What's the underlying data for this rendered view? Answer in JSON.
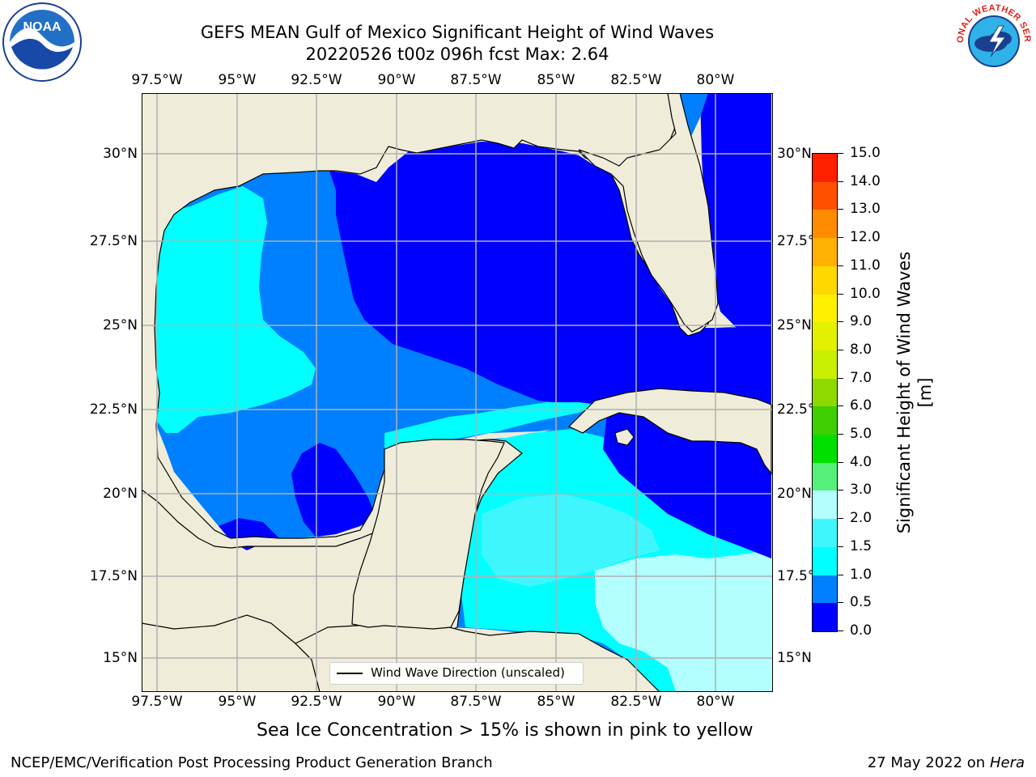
{
  "title": {
    "line1": "GEFS MEAN Gulf of Mexico Significant Height of Wind Waves",
    "line2": "20220526 t00z 096h fcst   Max: 2.64"
  },
  "axes": {
    "lon_labels": [
      "97.5°W",
      "95°W",
      "92.5°W",
      "90°W",
      "87.5°W",
      "85°W",
      "82.5°W",
      "80°W"
    ],
    "lat_labels": [
      "30°N",
      "27.5°N",
      "25°N",
      "22.5°N",
      "20°N",
      "17.5°N",
      "15°N"
    ],
    "lon_range": [
      -98,
      -78.2
    ],
    "lat_range": [
      14.0,
      31.6
    ]
  },
  "colorbar": {
    "label": "Significant Height of Wind Waves [m]",
    "ticks": [
      "0.0",
      "0.5",
      "1.0",
      "1.5",
      "2.0",
      "3.0",
      "4.0",
      "5.0",
      "6.0",
      "7.0",
      "8.0",
      "9.0",
      "10.0",
      "11.0",
      "12.0",
      "13.0",
      "14.0",
      "15.0"
    ],
    "colors": [
      "#0000ff",
      "#0080ff",
      "#00ffff",
      "#3ff6ff",
      "#b3ffff",
      "#55f07a",
      "#00e000",
      "#3fce00",
      "#8fd800",
      "#c8ef00",
      "#e3f000",
      "#fff000",
      "#ffd800",
      "#ffb000",
      "#ff8c00",
      "#ff5000",
      "#ff2000",
      "#ff0000"
    ]
  },
  "legend": {
    "label": "Wind Wave Direction (unscaled)"
  },
  "note": "Sea Ice Concentration > 15% is shown in pink to yellow",
  "footer": {
    "left": "NCEP/EMC/Verification Post Processing Product Generation Branch",
    "right_date": "27 May 2022 on",
    "right_host": "Hera"
  },
  "logos": {
    "noaa_text": "NOAA",
    "nws_text": "NATIONAL WEATHER SERVICE"
  },
  "colors": {
    "land": "#efedd9",
    "coast": "#000000",
    "arrow": "#ff0000",
    "grid": "#b0b0b0",
    "band_0_05": "#0000ff",
    "band_05_10": "#0080ff",
    "band_10_15": "#00ffff",
    "band_15_20": "#3ff6ff",
    "band_20_30": "#b3ffff"
  }
}
